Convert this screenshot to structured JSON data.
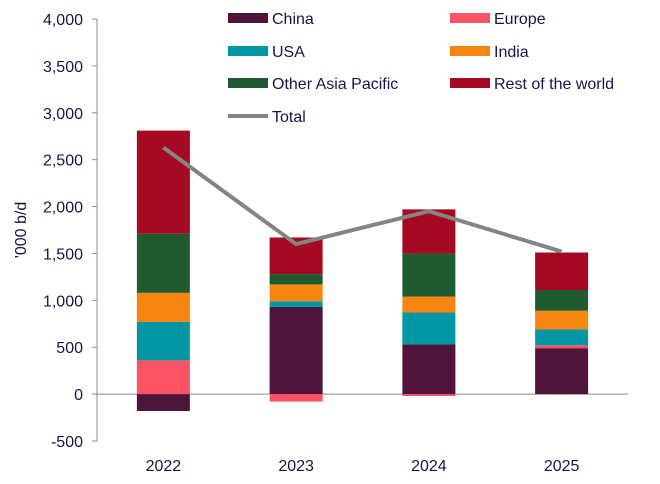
{
  "chart_data": {
    "type": "bar",
    "stacked": true,
    "title": "",
    "xlabel": "",
    "ylabel": "'000 b/d",
    "ylim": [
      -500,
      4000
    ],
    "ytick_step": 500,
    "yticks": [
      "-500",
      "0",
      "500",
      "1,000",
      "1,500",
      "2,000",
      "2,500",
      "3,000",
      "3,500",
      "4,000"
    ],
    "categories": [
      "2022",
      "2023",
      "2024",
      "2025"
    ],
    "series": [
      {
        "name": "China",
        "color": "#4f1439",
        "values": [
          -180,
          930,
          530,
          490
        ]
      },
      {
        "name": "Europe",
        "color": "#fb5363",
        "values": [
          360,
          -80,
          -20,
          30
        ]
      },
      {
        "name": "USA",
        "color": "#0096a3",
        "values": [
          410,
          60,
          340,
          170
        ]
      },
      {
        "name": "India",
        "color": "#f68512",
        "values": [
          310,
          180,
          170,
          200
        ]
      },
      {
        "name": "Other Asia Pacific",
        "color": "#1f5a30",
        "values": [
          630,
          110,
          460,
          220
        ]
      },
      {
        "name": "Rest of the world",
        "color": "#a60a22",
        "values": [
          1100,
          390,
          470,
          400
        ]
      }
    ],
    "line": {
      "name": "Total",
      "color": "#848484",
      "values": [
        2630,
        1600,
        1950,
        1520
      ]
    },
    "legend_position": "top"
  }
}
